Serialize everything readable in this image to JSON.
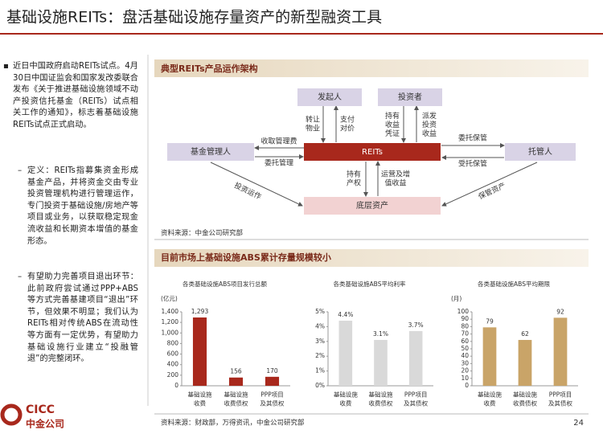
{
  "header": {
    "title": "基础设施REITs：盘活基础设施存量资产的新型融资工具"
  },
  "bullets": [
    "近日中国政府启动REITs试点。4月30日中国证监会和国家发改委联合发布《关于推进基础设施领域不动产投资信托基金（REITs）试点相关工作的通知》，标志着基础设施REITs试点正式启动。",
    "定义：REITs指募集资金形成基金产品，并将资金交由专业投资管理机构进行管理运作，专门投资于基础设施/房地产等项目或业务，以获取稳定现金流收益和长期资本增值的基金形态。",
    "有望助力完善项目退出环节：此前政府尝试通过PPP+ABS等方式完善基建项目“退出”环节，但效果不明显；我们认为REITs相对传统ABS在流动性等方面有一定优势，有望助力基础设施行业建立“投融管退”的完整闭环。"
  ],
  "diagram": {
    "title": "典型REITs产品运作架构",
    "nodes": [
      {
        "label": "发起人"
      },
      {
        "label": "投资者"
      },
      {
        "label": "基金管理人"
      },
      {
        "label": "REITs"
      },
      {
        "label": "托管人"
      },
      {
        "label": "底层资产"
      }
    ],
    "edges": [
      {
        "label": "转让\n物业"
      },
      {
        "label": "支付\n对价"
      },
      {
        "label": "持有\n收益\n凭证"
      },
      {
        "label": "派发\n投资\n收益"
      },
      {
        "label": "收取管理费"
      },
      {
        "label": "委托管理"
      },
      {
        "label": "委托保管"
      },
      {
        "label": "受托保管"
      },
      {
        "label": "持有\n产权"
      },
      {
        "label": "运营及增\n值收益"
      },
      {
        "label": "投资运作"
      },
      {
        "label": "保管资产"
      }
    ],
    "source": "资料来源：中金公司研究部"
  },
  "charts_section": {
    "title": "目前市场上基础设施ABS累计存量规模较小",
    "source": "资料来源：财政部，万得资讯，中金公司研究部"
  },
  "chart_data": [
    {
      "type": "bar",
      "title": "各类基础设施ABS项目发行总额",
      "y_label": "(亿元)",
      "categories": [
        "基础设施\n收费",
        "基础设施\n收费债权",
        "PPP项目\n及其债权"
      ],
      "values": [
        1293,
        156,
        170
      ],
      "value_labels": [
        "1,293",
        "156",
        "170"
      ],
      "color": "#a8281c",
      "ylim": [
        0,
        1400
      ],
      "yticks": [
        0,
        200,
        400,
        600,
        800,
        {
          "value": 1000,
          "label": "1,000"
        },
        {
          "value": 1200,
          "label": "1,200"
        },
        {
          "value": 1400,
          "label": "1,400"
        }
      ],
      "grid": false
    },
    {
      "type": "bar",
      "title": "各类基础设施ABS平均利率",
      "categories": [
        "基础设施\n收费",
        "基础设施\n收费债权",
        "PPP项目\n及其债权"
      ],
      "values": [
        4.4,
        3.1,
        3.7
      ],
      "value_labels": [
        "4.4%",
        "3.1%",
        "3.7%"
      ],
      "color": "#d9d9d9",
      "ylim": [
        0,
        5
      ],
      "yticks": [
        {
          "value": 0,
          "label": "0%"
        },
        {
          "value": 1,
          "label": "1%"
        },
        {
          "value": 2,
          "label": "2%"
        },
        {
          "value": 3,
          "label": "3%"
        },
        {
          "value": 4,
          "label": "4%"
        },
        {
          "value": 5,
          "label": "5%"
        }
      ],
      "grid": false
    },
    {
      "type": "bar",
      "title": "各类基础设施ABS平均期限",
      "y_label": "(月)",
      "categories": [
        "基础设施\n收费",
        "基础设施\n收费债权",
        "PPP项目\n及其债权"
      ],
      "values": [
        79,
        62,
        92
      ],
      "color": "#c9a468",
      "ylim": [
        0,
        100
      ],
      "yticks": [
        0,
        10,
        20,
        30,
        40,
        50,
        60,
        70,
        80,
        90,
        100
      ],
      "grid": false
    }
  ],
  "footer": {
    "logo": "CICC",
    "logo_cn": "中金公司",
    "page": "24"
  }
}
